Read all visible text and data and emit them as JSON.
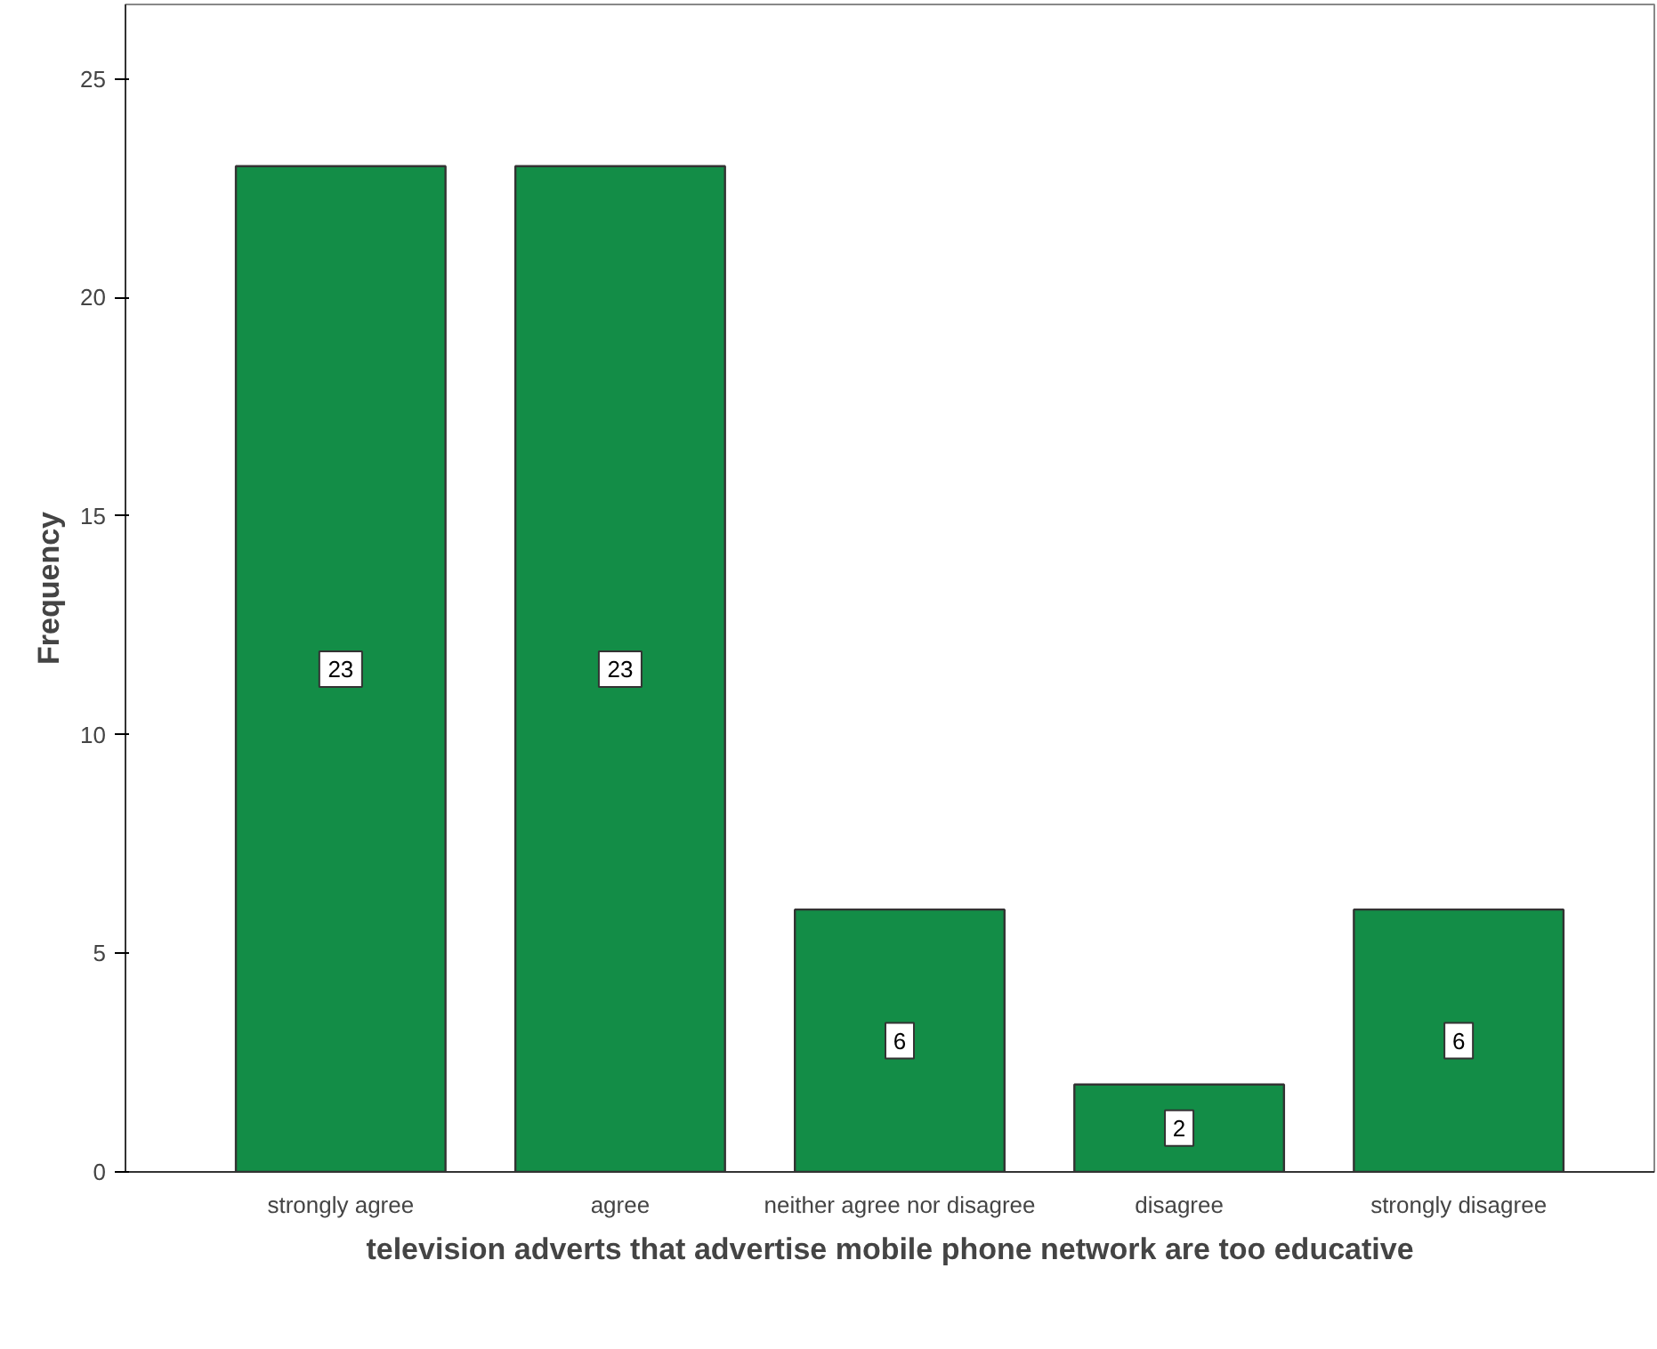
{
  "chart_data": {
    "type": "bar",
    "xlabel": "television adverts that advertise mobile phone network are too educative",
    "ylabel": "Frequency",
    "categories": [
      "strongly agree",
      "agree",
      "neither agree nor disagree",
      "disagree",
      "strongly disagree"
    ],
    "values": [
      23,
      23,
      6,
      2,
      6
    ],
    "color": "#138d47",
    "ylim": [
      0,
      26.7
    ],
    "yticks": [
      0,
      5,
      10,
      15,
      20,
      25
    ],
    "grid": false,
    "data_labels": true
  }
}
